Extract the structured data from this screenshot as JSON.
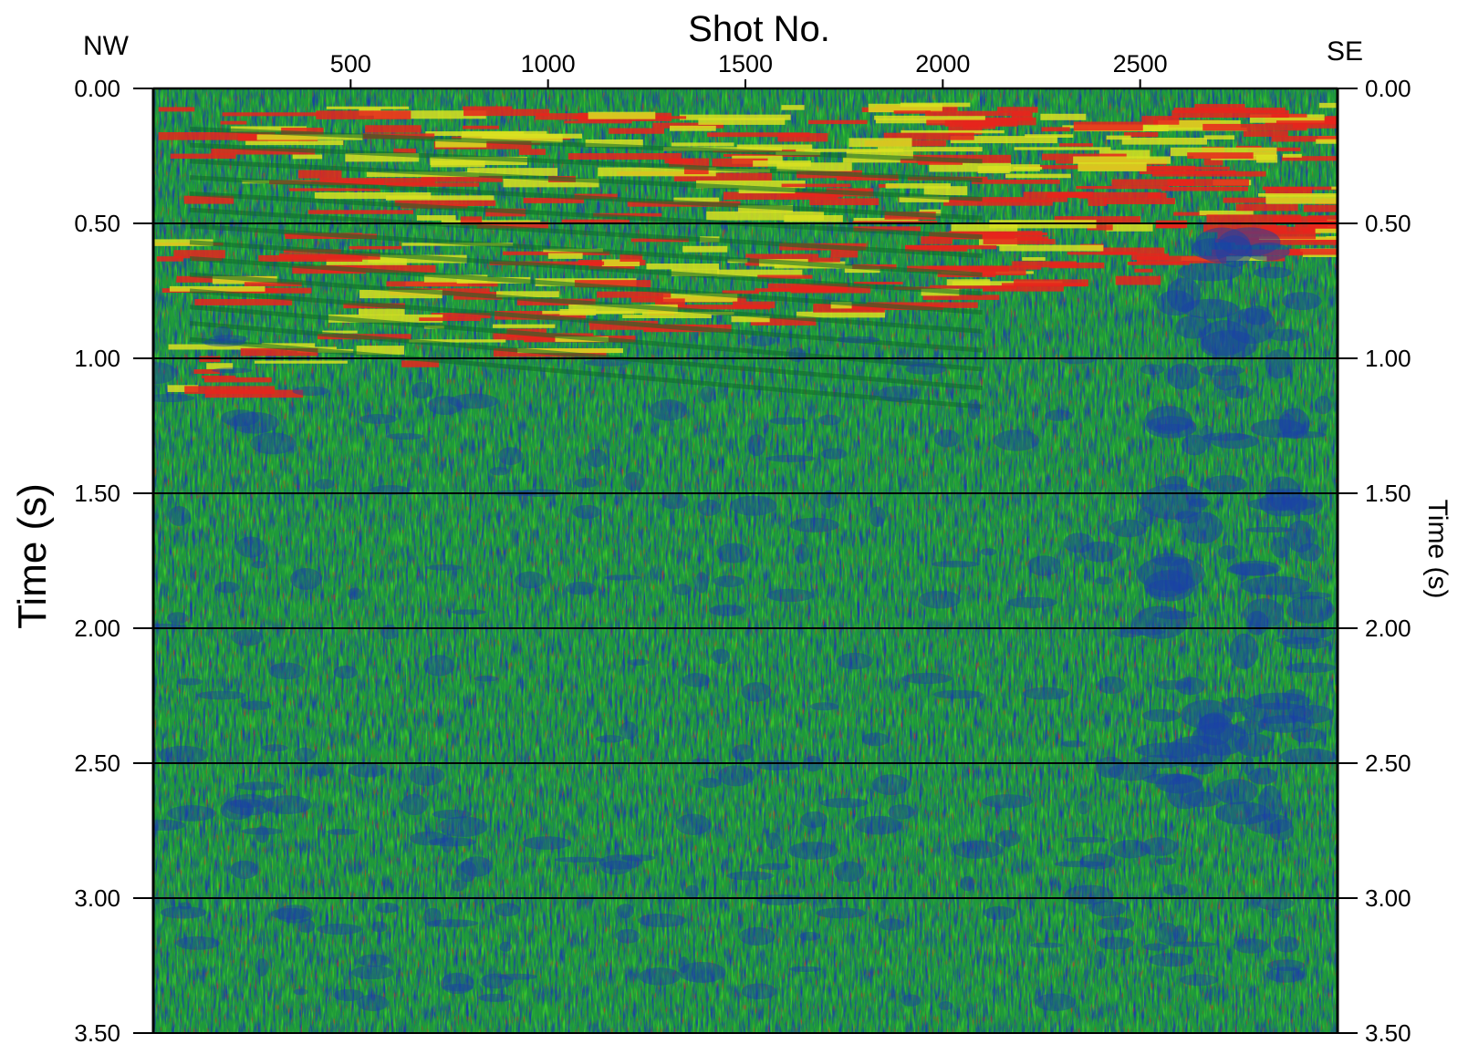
{
  "chart_data": {
    "type": "heatmap",
    "title": "",
    "xlabel": "Shot No.",
    "ylabel_left": "Time (s)",
    "ylabel_right": "Time (s)",
    "corner_labels": {
      "left": "NW",
      "right": "SE"
    },
    "x_ticks": [
      500,
      1000,
      1500,
      2000,
      2500
    ],
    "x_range": [
      0,
      3000
    ],
    "y_ticks": [
      "0.00",
      "0.50",
      "1.00",
      "1.50",
      "2.00",
      "2.50",
      "3.00",
      "3.50"
    ],
    "y_range": [
      0,
      3.5
    ],
    "y_inverted": true,
    "grid": "horizontal lines at 0.50 s intervals",
    "colormap": [
      "#1a3fa8",
      "#1d8f3c",
      "#3ccf2a",
      "#d9e021",
      "#e8241c"
    ],
    "description_values": {
      "strong_reflectors_time_range": [
        0.05,
        1.1
      ],
      "dipping_reflector_end": [
        2100,
        1.0
      ]
    }
  }
}
